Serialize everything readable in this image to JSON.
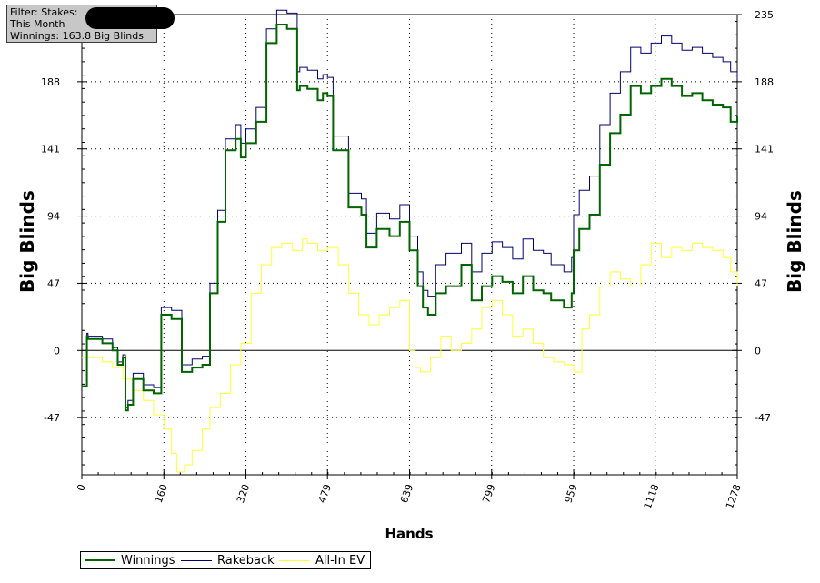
{
  "filter": {
    "line1": "Filter: Stakes:",
    "line2": "This Month",
    "line3": "Winnings: 163.8 Big Blinds"
  },
  "colors": {
    "winnings": "#006400",
    "rakeback": "#00006e",
    "allin_ev": "#ffff33"
  },
  "chart_data": {
    "type": "line",
    "xlabel": "Hands",
    "ylabel": "Big Blinds",
    "x_ticks": [
      0,
      160,
      320,
      479,
      639,
      799,
      959,
      1118,
      1278
    ],
    "y_ticks": [
      -47,
      0,
      47,
      94,
      141,
      188,
      235
    ],
    "y_tick_labels_left": [
      "-47",
      "0",
      "47",
      "94",
      "141",
      "188",
      ""
    ],
    "y_tick_labels_right": [
      "-47",
      "0",
      "47",
      "94",
      "141",
      "188",
      "235"
    ],
    "xlim": [
      0,
      1278
    ],
    "ylim": [
      -87,
      235
    ],
    "grid": true,
    "legend_position": "bottom-left",
    "series": [
      {
        "name": "Winnings",
        "color": "#006400",
        "x": [
          0,
          10,
          12,
          40,
          60,
          70,
          80,
          85,
          90,
          100,
          120,
          140,
          155,
          175,
          195,
          215,
          235,
          250,
          265,
          280,
          300,
          310,
          320,
          340,
          360,
          380,
          400,
          420,
          425,
          440,
          460,
          470,
          479,
          490,
          520,
          545,
          555,
          575,
          600,
          620,
          639,
          655,
          665,
          675,
          690,
          710,
          740,
          760,
          780,
          800,
          820,
          840,
          860,
          880,
          900,
          915,
          940,
          955,
          959,
          970,
          990,
          1010,
          1030,
          1050,
          1070,
          1090,
          1110,
          1130,
          1150,
          1170,
          1190,
          1210,
          1230,
          1250,
          1265,
          1278
        ],
        "y": [
          -25,
          10,
          8,
          5,
          0,
          -10,
          -5,
          -42,
          -38,
          -20,
          -28,
          -30,
          25,
          22,
          -15,
          -12,
          -10,
          40,
          90,
          140,
          148,
          135,
          145,
          160,
          215,
          228,
          225,
          182,
          185,
          183,
          175,
          180,
          178,
          140,
          100,
          95,
          72,
          85,
          80,
          90,
          70,
          45,
          30,
          25,
          40,
          45,
          60,
          35,
          45,
          52,
          48,
          40,
          52,
          42,
          40,
          35,
          30,
          40,
          70,
          85,
          95,
          130,
          152,
          165,
          185,
          180,
          185,
          190,
          185,
          178,
          180,
          175,
          172,
          170,
          160,
          163.8
        ]
      },
      {
        "name": "Rakeback",
        "color": "#00006e",
        "x": [
          0,
          10,
          12,
          40,
          60,
          70,
          80,
          85,
          90,
          100,
          120,
          140,
          155,
          175,
          195,
          215,
          235,
          250,
          265,
          280,
          300,
          310,
          320,
          340,
          360,
          380,
          400,
          420,
          425,
          440,
          460,
          470,
          479,
          490,
          520,
          545,
          555,
          575,
          600,
          620,
          639,
          655,
          665,
          675,
          690,
          710,
          740,
          760,
          780,
          800,
          820,
          840,
          860,
          880,
          900,
          915,
          940,
          955,
          959,
          970,
          990,
          1010,
          1030,
          1050,
          1070,
          1090,
          1110,
          1130,
          1150,
          1170,
          1190,
          1210,
          1230,
          1250,
          1265,
          1278
        ],
        "y": [
          -25,
          12,
          10,
          8,
          2,
          -8,
          -3,
          -40,
          -35,
          -16,
          -24,
          -26,
          30,
          28,
          -10,
          -6,
          -4,
          47,
          98,
          148,
          158,
          145,
          155,
          170,
          225,
          238,
          236,
          195,
          198,
          196,
          190,
          193,
          191,
          150,
          110,
          106,
          82,
          96,
          92,
          102,
          80,
          55,
          42,
          38,
          60,
          68,
          75,
          55,
          68,
          76,
          72,
          64,
          78,
          70,
          68,
          60,
          55,
          65,
          95,
          112,
          122,
          158,
          180,
          195,
          212,
          208,
          215,
          220,
          215,
          210,
          212,
          208,
          205,
          202,
          195,
          190
        ]
      },
      {
        "name": "All-In EV",
        "color": "#ffff33",
        "x": [
          0,
          20,
          40,
          60,
          80,
          100,
          120,
          140,
          160,
          175,
          185,
          200,
          215,
          235,
          250,
          270,
          290,
          310,
          330,
          350,
          370,
          390,
          410,
          430,
          440,
          460,
          479,
          500,
          520,
          540,
          560,
          580,
          600,
          620,
          639,
          650,
          660,
          680,
          700,
          720,
          740,
          760,
          780,
          800,
          820,
          840,
          860,
          880,
          900,
          920,
          940,
          959,
          975,
          990,
          1010,
          1030,
          1050,
          1070,
          1090,
          1110,
          1130,
          1150,
          1170,
          1190,
          1210,
          1230,
          1250,
          1265,
          1278
        ],
        "y": [
          -5,
          -5,
          -8,
          -12,
          -20,
          -28,
          -35,
          -45,
          -55,
          -72,
          -85,
          -80,
          -70,
          -55,
          -40,
          -30,
          -10,
          5,
          40,
          60,
          72,
          75,
          70,
          78,
          75,
          70,
          72,
          60,
          40,
          25,
          18,
          25,
          30,
          35,
          0,
          -12,
          -15,
          -5,
          10,
          0,
          5,
          15,
          30,
          35,
          25,
          10,
          15,
          5,
          -5,
          -8,
          -10,
          -15,
          15,
          25,
          45,
          55,
          50,
          45,
          60,
          75,
          65,
          72,
          70,
          75,
          72,
          70,
          65,
          55,
          45
        ]
      }
    ]
  }
}
